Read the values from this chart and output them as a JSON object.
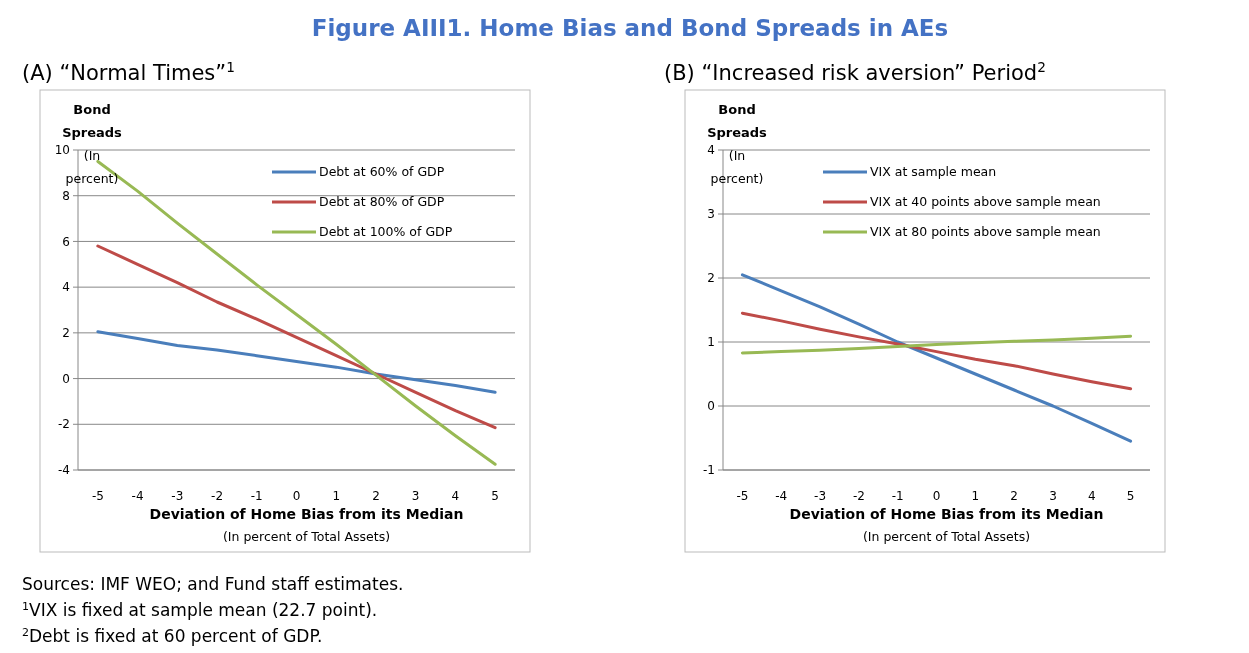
{
  "chart_data": [
    {
      "type": "line",
      "title": "Figure AIII1. Home Bias and Bond Spreads in AEs",
      "subtitle": "(A) “Normal Times”$^{1}$",
      "xlabel": "Deviation of Home Bias from its Median\n(In percent of Total Assets)",
      "ylabel": "Bond Spreads\n(In percent)",
      "categories": [
        "-5",
        "-4",
        "-3",
        "-2",
        "-1",
        "0",
        "1",
        "2",
        "3",
        "4",
        "5"
      ],
      "ylim": [
        -4,
        10
      ],
      "yticks": [
        -4,
        -2,
        0,
        2,
        4,
        6,
        8,
        10
      ],
      "grid": "y",
      "legend": "top right",
      "series": [
        {
          "name": "Debt at 60% of GDP",
          "color": "#4a7ebb",
          "values": [
            2.05,
            1.75,
            1.45,
            1.25,
            1.0,
            0.75,
            0.5,
            0.2,
            -0.05,
            -0.3,
            -0.6
          ]
        },
        {
          "name": "Debt at 80% of GDP",
          "color": "#be4b48",
          "values": [
            5.8,
            5.0,
            4.2,
            3.35,
            2.6,
            1.8,
            1.0,
            0.2,
            -0.6,
            -1.4,
            -2.15
          ]
        },
        {
          "name": "Debt at 100% of GDP",
          "color": "#98b954",
          "values": [
            9.5,
            8.2,
            6.8,
            5.45,
            4.1,
            2.8,
            1.5,
            0.15,
            -1.2,
            -2.5,
            -3.75
          ]
        }
      ],
      "annotations": [
        "Sources: IMF WEO; and Fund staff estimates.",
        "$^{1}$VIX is fixed at sample mean (22.7 point).",
        "$^{2}$Debt is fixed at 60 percent of GDP."
      ]
    },
    {
      "type": "line",
      "subtitle": "(B) “Increased risk aversion” Period$^{2}$",
      "xlabel": "Deviation of Home Bias from its Median\n(In percent of Total Assets)",
      "ylabel": "Bond Spreads\n(In percent)",
      "categories": [
        "-5",
        "-4",
        "-3",
        "-2",
        "-1",
        "0",
        "1",
        "2",
        "3",
        "4",
        "5"
      ],
      "ylim": [
        -1,
        4
      ],
      "yticks": [
        -1,
        0,
        1,
        2,
        3,
        4
      ],
      "grid": "y",
      "legend": "top right",
      "series": [
        {
          "name": "VIX at sample mean",
          "color": "#4a7ebb",
          "values": [
            2.05,
            1.8,
            1.55,
            1.28,
            1.0,
            0.75,
            0.5,
            0.25,
            0.0,
            -0.27,
            -0.55
          ]
        },
        {
          "name": "VIX at 40 points above sample mean",
          "color": "#be4b48",
          "values": [
            1.45,
            1.33,
            1.2,
            1.08,
            0.97,
            0.85,
            0.73,
            0.63,
            0.5,
            0.38,
            0.27
          ]
        },
        {
          "name": "VIX at 80 points above sample mean",
          "color": "#98b954",
          "values": [
            0.83,
            0.85,
            0.87,
            0.9,
            0.93,
            0.96,
            0.99,
            1.01,
            1.03,
            1.06,
            1.09
          ]
        }
      ]
    }
  ]
}
